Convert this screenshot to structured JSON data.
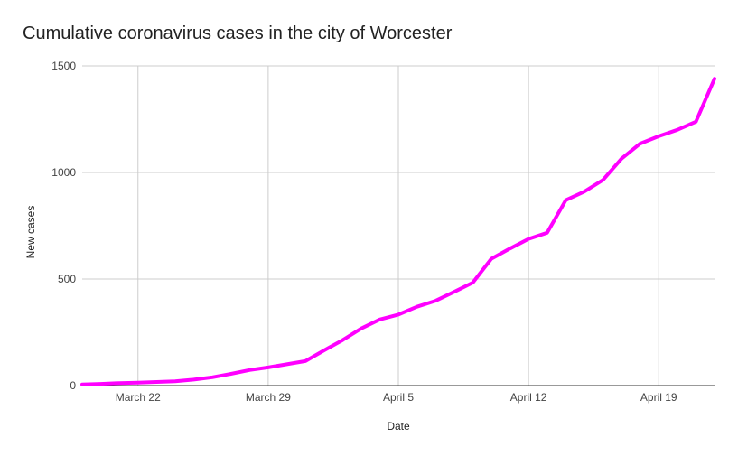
{
  "chart_data": {
    "type": "line",
    "title": "Cumulative coronavirus cases in the city of Worcester",
    "xlabel": "Date",
    "ylabel": "New cases",
    "x_start": "March 19",
    "x": [
      "March 19",
      "March 20",
      "March 21",
      "March 22",
      "March 23",
      "March 24",
      "March 25",
      "March 26",
      "March 27",
      "March 28",
      "March 29",
      "March 30",
      "March 31",
      "April 1",
      "April 2",
      "April 3",
      "April 4",
      "April 5",
      "April 6",
      "April 7",
      "April 8",
      "April 9",
      "April 10",
      "April 11",
      "April 12",
      "April 13",
      "April 14",
      "April 15",
      "April 16",
      "April 17",
      "April 18",
      "April 19",
      "April 20",
      "April 21",
      "April 22"
    ],
    "series": [
      {
        "name": "",
        "color": "#ff00ff",
        "values": [
          5,
          8,
          12,
          14,
          17,
          20,
          28,
          39,
          55,
          73,
          85,
          100,
          115,
          165,
          213,
          268,
          310,
          333,
          370,
          398,
          440,
          483,
          595,
          643,
          688,
          717,
          870,
          910,
          965,
          1065,
          1135,
          1170,
          1200,
          1238,
          1440
        ]
      }
    ],
    "x_ticks": [
      "March 22",
      "March 29",
      "April 5",
      "April 12",
      "April 19"
    ],
    "y_ticks": [
      "0",
      "500",
      "1000",
      "1500"
    ],
    "ylim": [
      0,
      1500
    ],
    "grid": true,
    "legend": "none"
  }
}
